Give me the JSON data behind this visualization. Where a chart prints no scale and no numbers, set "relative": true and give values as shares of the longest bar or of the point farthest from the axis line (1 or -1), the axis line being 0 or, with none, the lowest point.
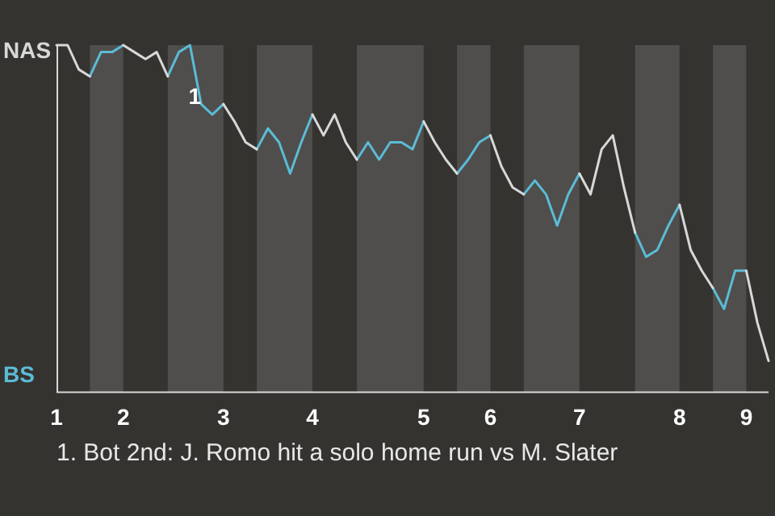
{
  "chart_data": {
    "type": "line",
    "relative": true,
    "categories": [
      "1",
      null,
      null,
      null,
      null,
      null,
      "2",
      null,
      null,
      null,
      null,
      null,
      null,
      null,
      null,
      "3",
      null,
      null,
      null,
      null,
      null,
      null,
      null,
      "4",
      null,
      null,
      null,
      null,
      null,
      null,
      null,
      null,
      null,
      "5",
      null,
      null,
      null,
      null,
      null,
      "6",
      null,
      null,
      null,
      null,
      null,
      null,
      null,
      "7",
      null,
      null,
      null,
      null,
      null,
      null,
      null,
      null,
      "8",
      null,
      null,
      null,
      null,
      null,
      "9",
      null,
      null
    ],
    "series": [
      {
        "name": "NAS",
        "color": "#d8d8d8",
        "values": [
          1,
          1,
          0.93,
          0.91,
          null,
          null,
          1,
          0.98,
          0.96,
          0.98,
          0.91,
          null,
          null,
          null,
          null,
          0.83,
          0.78,
          0.72,
          0.7,
          null,
          null,
          null,
          null,
          0.8,
          0.74,
          0.8,
          0.72,
          0.67,
          null,
          null,
          null,
          null,
          null,
          0.78,
          0.72,
          0.67,
          0.63,
          null,
          null,
          0.74,
          0.65,
          0.59,
          0.57,
          null,
          null,
          null,
          null,
          0.63,
          0.57,
          0.7,
          0.74,
          0.59,
          0.46,
          null,
          null,
          null,
          0.54,
          0.41,
          0.35,
          0.3,
          null,
          null,
          0.35,
          0.2,
          0.09
        ]
      },
      {
        "name": "BS",
        "color": "#5bbcd6",
        "values": [
          null,
          null,
          null,
          0.91,
          0.98,
          0.98,
          1,
          null,
          null,
          null,
          0.91,
          0.98,
          1,
          0.83,
          0.8,
          0.83,
          null,
          null,
          0.7,
          0.76,
          0.72,
          0.63,
          0.72,
          0.8,
          null,
          null,
          null,
          0.67,
          0.72,
          0.67,
          0.72,
          0.72,
          0.7,
          0.78,
          null,
          null,
          0.63,
          0.67,
          0.72,
          0.74,
          null,
          null,
          0.57,
          0.61,
          0.57,
          0.48,
          0.57,
          0.63,
          null,
          null,
          null,
          null,
          0.46,
          0.39,
          0.41,
          0.48,
          0.54,
          null,
          null,
          0.3,
          0.24,
          0.35,
          0.35,
          null,
          null
        ]
      }
    ],
    "legend": "left",
    "marker": "none",
    "line_style": "solid",
    "annotations": [
      {
        "text": "1",
        "y": 0.83
      },
      "1. Bot 2nd: J. Romo hit a solo home run vs M. Slater"
    ]
  }
}
